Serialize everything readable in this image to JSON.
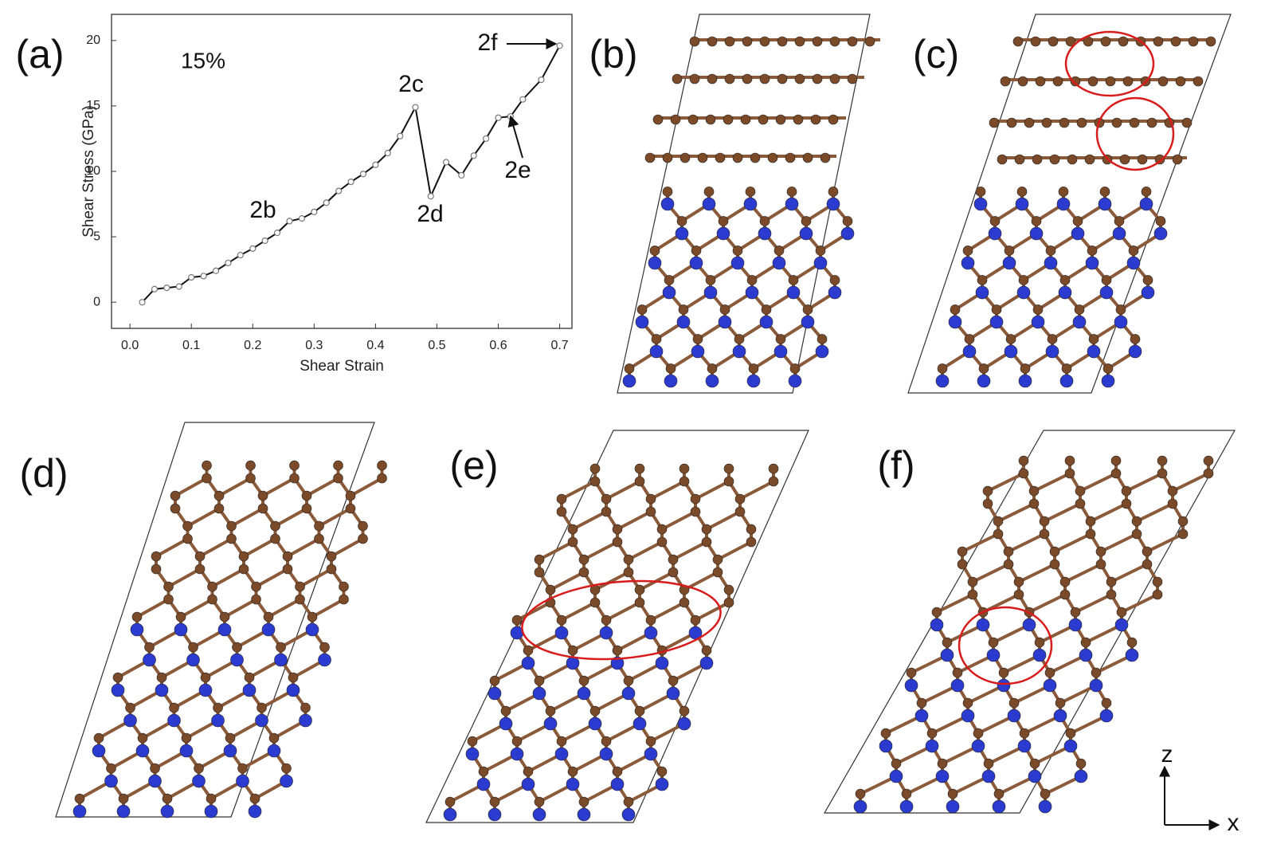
{
  "chart_data": {
    "type": "line",
    "xlabel": "Shear Strain",
    "ylabel": "Shear Stress (GPa)",
    "x": [
      0.02,
      0.04,
      0.06,
      0.08,
      0.1,
      0.12,
      0.14,
      0.16,
      0.18,
      0.2,
      0.22,
      0.24,
      0.26,
      0.28,
      0.3,
      0.32,
      0.34,
      0.36,
      0.38,
      0.4,
      0.42,
      0.44,
      0.465,
      0.49,
      0.515,
      0.54,
      0.56,
      0.58,
      0.6,
      0.62,
      0.64,
      0.67,
      0.7
    ],
    "series": [
      {
        "color": "#111111",
        "values": [
          0,
          1.0,
          1.1,
          1.2,
          1.9,
          2.0,
          2.4,
          3.0,
          3.6,
          4.1,
          4.7,
          5.3,
          6.2,
          6.4,
          6.9,
          7.6,
          8.5,
          9.2,
          9.8,
          10.5,
          11.4,
          12.7,
          14.9,
          8.1,
          10.7,
          9.7,
          11.2,
          12.5,
          14.1,
          14.2,
          15.5,
          17.0,
          19.6
        ]
      }
    ],
    "xlim": [
      -0.03,
      0.72
    ],
    "ylim": [
      -2,
      22
    ],
    "xticks": [
      {
        "value": 0,
        "label": "0.0"
      },
      0.1,
      0.2,
      0.3,
      0.4,
      0.5,
      0.6,
      0.7
    ],
    "yticks": [
      0,
      5,
      10,
      15,
      20
    ],
    "annotations": [
      "15%",
      "2b",
      "2c",
      "2d",
      "2e",
      "2f"
    ]
  },
  "panels": {
    "labels": [
      "(a)",
      "(b)",
      "(c)",
      "(d)",
      "(e)",
      "(f)"
    ]
  },
  "axes_glyph": {
    "z": "z",
    "x": "x"
  }
}
